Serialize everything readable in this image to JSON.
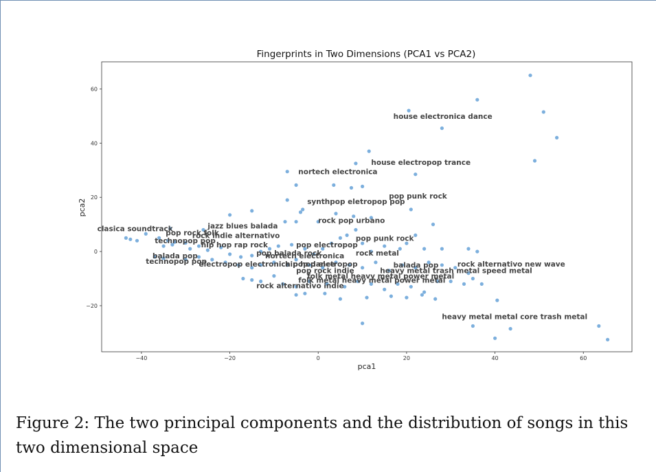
{
  "figure": {
    "caption": "Figure 2: The two principal components and the distribution of songs in this two dimensional space"
  },
  "chart_data": {
    "type": "scatter",
    "title": "Fingerprints in Two Dimensions (PCA1 vs PCA2)",
    "xlabel": "pca1",
    "ylabel": "pca2",
    "xlim": [
      -49,
      71
    ],
    "ylim": [
      -37,
      70
    ],
    "xticks": [
      -40,
      -20,
      0,
      20,
      40,
      60
    ],
    "yticks": [
      -20,
      0,
      20,
      40,
      60
    ],
    "grid": false,
    "point_color": "#5b9bd5",
    "points": [
      [
        48,
        65
      ],
      [
        36,
        56
      ],
      [
        20.5,
        52
      ],
      [
        51,
        51.5
      ],
      [
        28,
        45.5
      ],
      [
        54,
        42
      ],
      [
        49,
        33.5
      ],
      [
        11.5,
        37
      ],
      [
        8.5,
        32.5
      ],
      [
        22,
        28.5
      ],
      [
        -7,
        29.5
      ],
      [
        -5,
        24.5
      ],
      [
        3.5,
        24.5
      ],
      [
        7.5,
        23.5
      ],
      [
        10,
        24
      ],
      [
        -7,
        19
      ],
      [
        -20,
        13.5
      ],
      [
        -15,
        15
      ],
      [
        -4,
        14.5
      ],
      [
        -3.5,
        15.5
      ],
      [
        4,
        14
      ],
      [
        8,
        13
      ],
      [
        12,
        12.5
      ],
      [
        21,
        15.5
      ],
      [
        -33.5,
        8.5
      ],
      [
        -26,
        8
      ],
      [
        -7.5,
        11
      ],
      [
        -5,
        11
      ],
      [
        0,
        11
      ],
      [
        8.5,
        8
      ],
      [
        26,
        10
      ],
      [
        -43.5,
        5
      ],
      [
        -42.5,
        4.5
      ],
      [
        -41,
        4
      ],
      [
        -39,
        6.5
      ],
      [
        -36,
        5
      ],
      [
        -34,
        4
      ],
      [
        -32.5,
        3.5
      ],
      [
        -30,
        3.2
      ],
      [
        -35,
        2
      ],
      [
        -33,
        2.5
      ],
      [
        -29,
        1
      ],
      [
        -27,
        2
      ],
      [
        -25,
        0.5
      ],
      [
        -22,
        1.5
      ],
      [
        -20,
        -1
      ],
      [
        -17.5,
        -2
      ],
      [
        -15,
        -1.5
      ],
      [
        -13,
        0
      ],
      [
        -11,
        1
      ],
      [
        -9,
        2
      ],
      [
        -6,
        2.5
      ],
      [
        -3,
        1
      ],
      [
        -1,
        -1
      ],
      [
        1,
        1
      ],
      [
        3,
        3
      ],
      [
        5,
        5
      ],
      [
        6.5,
        6
      ],
      [
        10,
        3
      ],
      [
        12,
        0
      ],
      [
        15,
        2
      ],
      [
        18.5,
        1
      ],
      [
        20,
        3
      ],
      [
        22,
        6
      ],
      [
        24,
        1
      ],
      [
        28,
        1
      ],
      [
        34,
        1
      ],
      [
        36,
        0
      ],
      [
        -37,
        -2
      ],
      [
        -35,
        -2.5
      ],
      [
        -30,
        -3
      ],
      [
        -27,
        -2
      ],
      [
        -24,
        -3
      ],
      [
        -21,
        -4
      ],
      [
        -18,
        -5
      ],
      [
        -15,
        -6
      ],
      [
        -13,
        -5
      ],
      [
        -10,
        -4
      ],
      [
        -7,
        -5
      ],
      [
        -5,
        -3
      ],
      [
        -2,
        -5
      ],
      [
        1,
        -6
      ],
      [
        4,
        -4
      ],
      [
        7,
        -5
      ],
      [
        10,
        -6
      ],
      [
        13,
        -4
      ],
      [
        16,
        -7
      ],
      [
        19,
        -5
      ],
      [
        22,
        -6
      ],
      [
        25,
        -4
      ],
      [
        28,
        -5
      ],
      [
        31,
        -6
      ],
      [
        34,
        -8
      ],
      [
        -17,
        -10
      ],
      [
        -15,
        -10.5
      ],
      [
        -13,
        -11
      ],
      [
        -10,
        -9
      ],
      [
        -8,
        -12
      ],
      [
        -5,
        -13
      ],
      [
        -2,
        -11
      ],
      [
        2,
        -12
      ],
      [
        6,
        -13
      ],
      [
        9,
        -11
      ],
      [
        12,
        -12
      ],
      [
        15,
        -14
      ],
      [
        18,
        -12
      ],
      [
        21,
        -13
      ],
      [
        24,
        -15
      ],
      [
        27,
        -11
      ],
      [
        30,
        -11
      ],
      [
        33,
        -12
      ],
      [
        35,
        -10
      ],
      [
        37,
        -12
      ],
      [
        -5,
        -16
      ],
      [
        -3,
        -15.5
      ],
      [
        1.5,
        -15.5
      ],
      [
        5,
        -17.5
      ],
      [
        11,
        -17
      ],
      [
        16.5,
        -16.5
      ],
      [
        20,
        -17
      ],
      [
        23.5,
        -16
      ],
      [
        26.5,
        -17.5
      ],
      [
        40.5,
        -18
      ],
      [
        10,
        -26.5
      ],
      [
        35,
        -27.5
      ],
      [
        40,
        -32
      ],
      [
        43.5,
        -28.5
      ],
      [
        63.5,
        -27.5
      ],
      [
        65.5,
        -32.5
      ]
    ],
    "annotations": [
      {
        "text": "house electronica dance",
        "x": 17,
        "y": 49
      },
      {
        "text": "house electropop trance",
        "x": 12,
        "y": 32
      },
      {
        "text": "nortech electronica",
        "x": -4.5,
        "y": 28.5
      },
      {
        "text": "pop punk rock",
        "x": 16,
        "y": 19.5
      },
      {
        "text": "synthpop eletropop pop",
        "x": -2.5,
        "y": 17.5
      },
      {
        "text": "rock pop urbano",
        "x": 0,
        "y": 10.5
      },
      {
        "text": "jazz blues balada",
        "x": -25,
        "y": 8.5
      },
      {
        "text": "clasica soundtrack",
        "x": -50,
        "y": 7.5
      },
      {
        "text": "pop rock folk",
        "x": -34.5,
        "y": 6
      },
      {
        "text": "rock indie alternativo",
        "x": -28.5,
        "y": 5
      },
      {
        "text": "pop punk rock",
        "x": 8.5,
        "y": 4
      },
      {
        "text": "technopop pop",
        "x": -37,
        "y": 3
      },
      {
        "text": "hip hop rap rock",
        "x": -26.5,
        "y": 1.5
      },
      {
        "text": "pop electropop",
        "x": -5,
        "y": 1.5
      },
      {
        "text": "pop balada rock",
        "x": -14,
        "y": -1.5
      },
      {
        "text": "nortech electronica",
        "x": -12,
        "y": -2.5
      },
      {
        "text": "rock metal",
        "x": 8.5,
        "y": -1.5
      },
      {
        "text": "balada pop",
        "x": -37.5,
        "y": -2.5
      },
      {
        "text": "technopop pop",
        "x": -39,
        "y": -4.5
      },
      {
        "text": "electropop electronica pop dance",
        "x": -27,
        "y": -5.5
      },
      {
        "text": "hip hop eletropop",
        "x": -7.5,
        "y": -5.5
      },
      {
        "text": "balada pop",
        "x": 17,
        "y": -6
      },
      {
        "text": "rock alternativo new wave",
        "x": 31.5,
        "y": -5.5
      },
      {
        "text": "pop rock indie",
        "x": -5,
        "y": -8
      },
      {
        "text": "heavy metal trash metal speed metal",
        "x": 14,
        "y": -8
      },
      {
        "text": "folk metal heavy metal power metal",
        "x": -2.5,
        "y": -10
      },
      {
        "text": "folk metal heavy metal power metal",
        "x": -4.5,
        "y": -11.5
      },
      {
        "text": "rock alternativo indie",
        "x": -14,
        "y": -13.5
      },
      {
        "text": "heavy metal metal core trash metal",
        "x": 28,
        "y": -25
      }
    ]
  }
}
